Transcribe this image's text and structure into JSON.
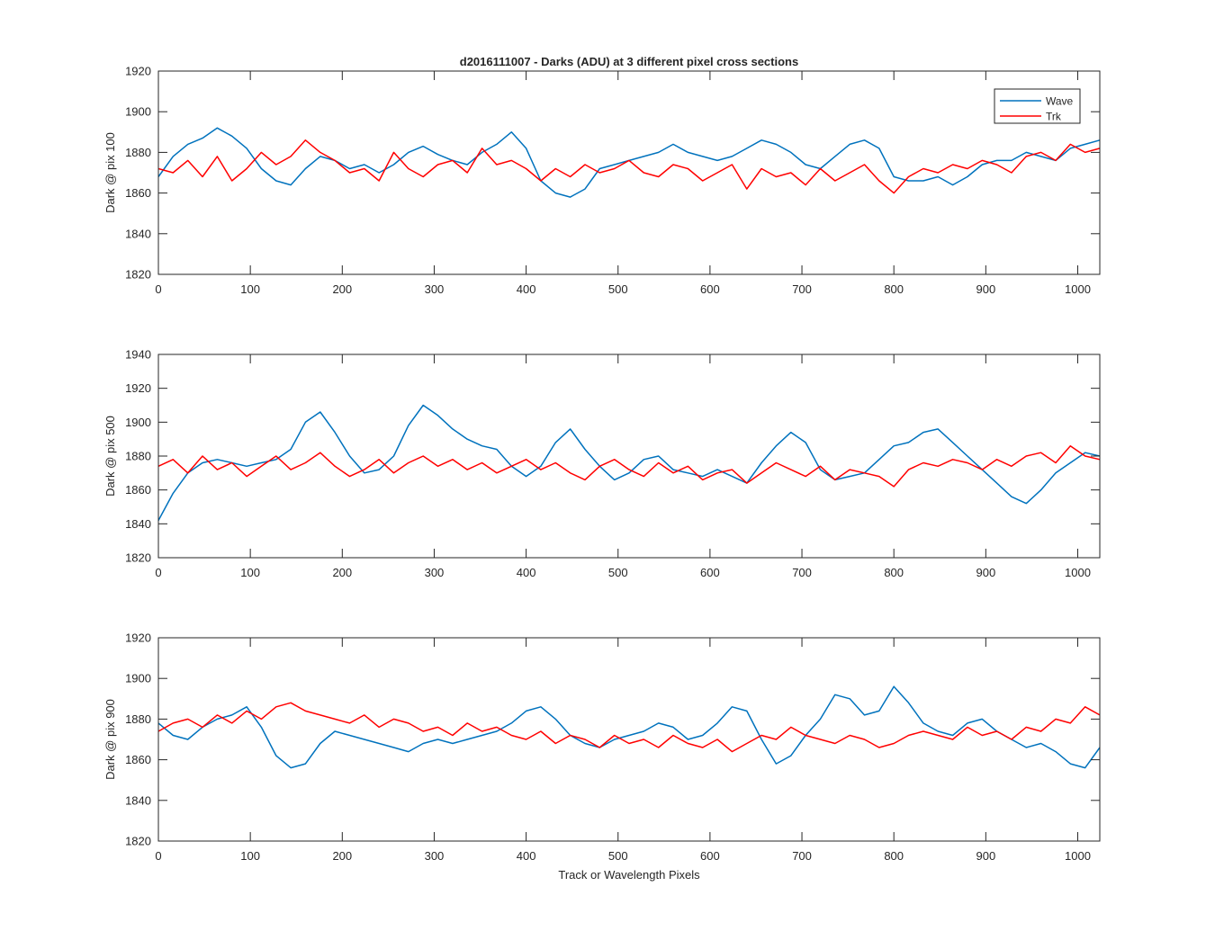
{
  "figure": {
    "title": "d2016111007 - Darks (ADU) at 3 different pixel cross sections",
    "xlabel": "Track or Wavelength Pixels"
  },
  "colors": {
    "wave": "#0072BD",
    "trk": "#FF0000",
    "axis": "#262626"
  },
  "legend": {
    "location": "top-right",
    "entries": [
      "Wave",
      "Trk"
    ]
  },
  "chart_data": [
    {
      "type": "line",
      "ylabel": "Dark @ pix 100",
      "xlim": [
        0,
        1024
      ],
      "ylim": [
        1820,
        1920
      ],
      "xticks": [
        0,
        100,
        200,
        300,
        400,
        500,
        600,
        700,
        800,
        900,
        1000
      ],
      "yticks": [
        1820,
        1840,
        1860,
        1880,
        1900,
        1920
      ],
      "grid": false,
      "series": [
        {
          "name": "Wave",
          "x": [
            0,
            16,
            32,
            48,
            64,
            80,
            96,
            112,
            128,
            144,
            160,
            176,
            192,
            208,
            224,
            240,
            256,
            272,
            288,
            304,
            320,
            336,
            352,
            368,
            384,
            400,
            416,
            432,
            448,
            464,
            480,
            496,
            512,
            528,
            544,
            560,
            576,
            592,
            608,
            624,
            640,
            656,
            672,
            688,
            704,
            720,
            736,
            752,
            768,
            784,
            800,
            816,
            832,
            848,
            864,
            880,
            896,
            912,
            928,
            944,
            960,
            976,
            992,
            1008,
            1024
          ],
          "y": [
            1868,
            1878,
            1884,
            1887,
            1892,
            1888,
            1882,
            1872,
            1866,
            1864,
            1872,
            1878,
            1876,
            1872,
            1874,
            1870,
            1874,
            1880,
            1883,
            1879,
            1876,
            1874,
            1880,
            1884,
            1890,
            1882,
            1866,
            1860,
            1858,
            1862,
            1872,
            1874,
            1876,
            1878,
            1880,
            1884,
            1880,
            1878,
            1876,
            1878,
            1882,
            1886,
            1884,
            1880,
            1874,
            1872,
            1878,
            1884,
            1886,
            1882,
            1868,
            1866,
            1866,
            1868,
            1864,
            1868,
            1874,
            1876,
            1876,
            1880,
            1878,
            1876,
            1882,
            1884,
            1886
          ]
        },
        {
          "name": "Trk",
          "x": [
            0,
            16,
            32,
            48,
            64,
            80,
            96,
            112,
            128,
            144,
            160,
            176,
            192,
            208,
            224,
            240,
            256,
            272,
            288,
            304,
            320,
            336,
            352,
            368,
            384,
            400,
            416,
            432,
            448,
            464,
            480,
            496,
            512,
            528,
            544,
            560,
            576,
            592,
            608,
            624,
            640,
            656,
            672,
            688,
            704,
            720,
            736,
            752,
            768,
            784,
            800,
            816,
            832,
            848,
            864,
            880,
            896,
            912,
            928,
            944,
            960,
            976,
            992,
            1008,
            1024
          ],
          "y": [
            1872,
            1870,
            1876,
            1868,
            1878,
            1866,
            1872,
            1880,
            1874,
            1878,
            1886,
            1880,
            1876,
            1870,
            1872,
            1866,
            1880,
            1872,
            1868,
            1874,
            1876,
            1870,
            1882,
            1874,
            1876,
            1872,
            1866,
            1872,
            1868,
            1874,
            1870,
            1872,
            1876,
            1870,
            1868,
            1874,
            1872,
            1866,
            1870,
            1874,
            1862,
            1872,
            1868,
            1870,
            1864,
            1872,
            1866,
            1870,
            1874,
            1866,
            1860,
            1868,
            1872,
            1870,
            1874,
            1872,
            1876,
            1874,
            1870,
            1878,
            1880,
            1876,
            1884,
            1880,
            1882
          ]
        }
      ]
    },
    {
      "type": "line",
      "ylabel": "Dark @ pix 500",
      "xlim": [
        0,
        1024
      ],
      "ylim": [
        1820,
        1940
      ],
      "xticks": [
        0,
        100,
        200,
        300,
        400,
        500,
        600,
        700,
        800,
        900,
        1000
      ],
      "yticks": [
        1820,
        1840,
        1860,
        1880,
        1900,
        1920,
        1940
      ],
      "grid": false,
      "series": [
        {
          "name": "Wave",
          "x": [
            0,
            16,
            32,
            48,
            64,
            80,
            96,
            112,
            128,
            144,
            160,
            176,
            192,
            208,
            224,
            240,
            256,
            272,
            288,
            304,
            320,
            336,
            352,
            368,
            384,
            400,
            416,
            432,
            448,
            464,
            480,
            496,
            512,
            528,
            544,
            560,
            576,
            592,
            608,
            624,
            640,
            656,
            672,
            688,
            704,
            720,
            736,
            752,
            768,
            784,
            800,
            816,
            832,
            848,
            864,
            880,
            896,
            912,
            928,
            944,
            960,
            976,
            992,
            1008,
            1024
          ],
          "y": [
            1842,
            1858,
            1870,
            1876,
            1878,
            1876,
            1874,
            1876,
            1878,
            1884,
            1900,
            1906,
            1894,
            1880,
            1870,
            1872,
            1880,
            1898,
            1910,
            1904,
            1896,
            1890,
            1886,
            1884,
            1874,
            1868,
            1874,
            1888,
            1896,
            1884,
            1874,
            1866,
            1870,
            1878,
            1880,
            1872,
            1870,
            1868,
            1872,
            1868,
            1864,
            1876,
            1886,
            1894,
            1888,
            1872,
            1866,
            1868,
            1870,
            1878,
            1886,
            1888,
            1894,
            1896,
            1888,
            1880,
            1872,
            1864,
            1856,
            1852,
            1860,
            1870,
            1876,
            1882,
            1880
          ]
        },
        {
          "name": "Trk",
          "x": [
            0,
            16,
            32,
            48,
            64,
            80,
            96,
            112,
            128,
            144,
            160,
            176,
            192,
            208,
            224,
            240,
            256,
            272,
            288,
            304,
            320,
            336,
            352,
            368,
            384,
            400,
            416,
            432,
            448,
            464,
            480,
            496,
            512,
            528,
            544,
            560,
            576,
            592,
            608,
            624,
            640,
            656,
            672,
            688,
            704,
            720,
            736,
            752,
            768,
            784,
            800,
            816,
            832,
            848,
            864,
            880,
            896,
            912,
            928,
            944,
            960,
            976,
            992,
            1008,
            1024
          ],
          "y": [
            1874,
            1878,
            1870,
            1880,
            1872,
            1876,
            1868,
            1874,
            1880,
            1872,
            1876,
            1882,
            1874,
            1868,
            1872,
            1878,
            1870,
            1876,
            1880,
            1874,
            1878,
            1872,
            1876,
            1870,
            1874,
            1878,
            1872,
            1876,
            1870,
            1866,
            1874,
            1878,
            1872,
            1868,
            1876,
            1870,
            1874,
            1866,
            1870,
            1872,
            1864,
            1870,
            1876,
            1872,
            1868,
            1874,
            1866,
            1872,
            1870,
            1868,
            1862,
            1872,
            1876,
            1874,
            1878,
            1876,
            1872,
            1878,
            1874,
            1880,
            1882,
            1876,
            1886,
            1880,
            1878
          ]
        }
      ]
    },
    {
      "type": "line",
      "ylabel": "Dark @ pix 900",
      "xlim": [
        0,
        1024
      ],
      "ylim": [
        1820,
        1920
      ],
      "xticks": [
        0,
        100,
        200,
        300,
        400,
        500,
        600,
        700,
        800,
        900,
        1000
      ],
      "yticks": [
        1820,
        1840,
        1860,
        1880,
        1900,
        1920
      ],
      "grid": false,
      "series": [
        {
          "name": "Wave",
          "x": [
            0,
            16,
            32,
            48,
            64,
            80,
            96,
            112,
            128,
            144,
            160,
            176,
            192,
            208,
            224,
            240,
            256,
            272,
            288,
            304,
            320,
            336,
            352,
            368,
            384,
            400,
            416,
            432,
            448,
            464,
            480,
            496,
            512,
            528,
            544,
            560,
            576,
            592,
            608,
            624,
            640,
            656,
            672,
            688,
            704,
            720,
            736,
            752,
            768,
            784,
            800,
            816,
            832,
            848,
            864,
            880,
            896,
            912,
            928,
            944,
            960,
            976,
            992,
            1008,
            1024
          ],
          "y": [
            1878,
            1872,
            1870,
            1876,
            1880,
            1882,
            1886,
            1876,
            1862,
            1856,
            1858,
            1868,
            1874,
            1872,
            1870,
            1868,
            1866,
            1864,
            1868,
            1870,
            1868,
            1870,
            1872,
            1874,
            1878,
            1884,
            1886,
            1880,
            1872,
            1868,
            1866,
            1870,
            1872,
            1874,
            1878,
            1876,
            1870,
            1872,
            1878,
            1886,
            1884,
            1870,
            1858,
            1862,
            1872,
            1880,
            1892,
            1890,
            1882,
            1884,
            1896,
            1888,
            1878,
            1874,
            1872,
            1878,
            1880,
            1874,
            1870,
            1866,
            1868,
            1864,
            1858,
            1856,
            1866
          ]
        },
        {
          "name": "Trk",
          "x": [
            0,
            16,
            32,
            48,
            64,
            80,
            96,
            112,
            128,
            144,
            160,
            176,
            192,
            208,
            224,
            240,
            256,
            272,
            288,
            304,
            320,
            336,
            352,
            368,
            384,
            400,
            416,
            432,
            448,
            464,
            480,
            496,
            512,
            528,
            544,
            560,
            576,
            592,
            608,
            624,
            640,
            656,
            672,
            688,
            704,
            720,
            736,
            752,
            768,
            784,
            800,
            816,
            832,
            848,
            864,
            880,
            896,
            912,
            928,
            944,
            960,
            976,
            992,
            1008,
            1024
          ],
          "y": [
            1874,
            1878,
            1880,
            1876,
            1882,
            1878,
            1884,
            1880,
            1886,
            1888,
            1884,
            1882,
            1880,
            1878,
            1882,
            1876,
            1880,
            1878,
            1874,
            1876,
            1872,
            1878,
            1874,
            1876,
            1872,
            1870,
            1874,
            1868,
            1872,
            1870,
            1866,
            1872,
            1868,
            1870,
            1866,
            1872,
            1868,
            1866,
            1870,
            1864,
            1868,
            1872,
            1870,
            1876,
            1872,
            1870,
            1868,
            1872,
            1870,
            1866,
            1868,
            1872,
            1874,
            1872,
            1870,
            1876,
            1872,
            1874,
            1870,
            1876,
            1874,
            1880,
            1878,
            1886,
            1882
          ]
        }
      ]
    }
  ]
}
